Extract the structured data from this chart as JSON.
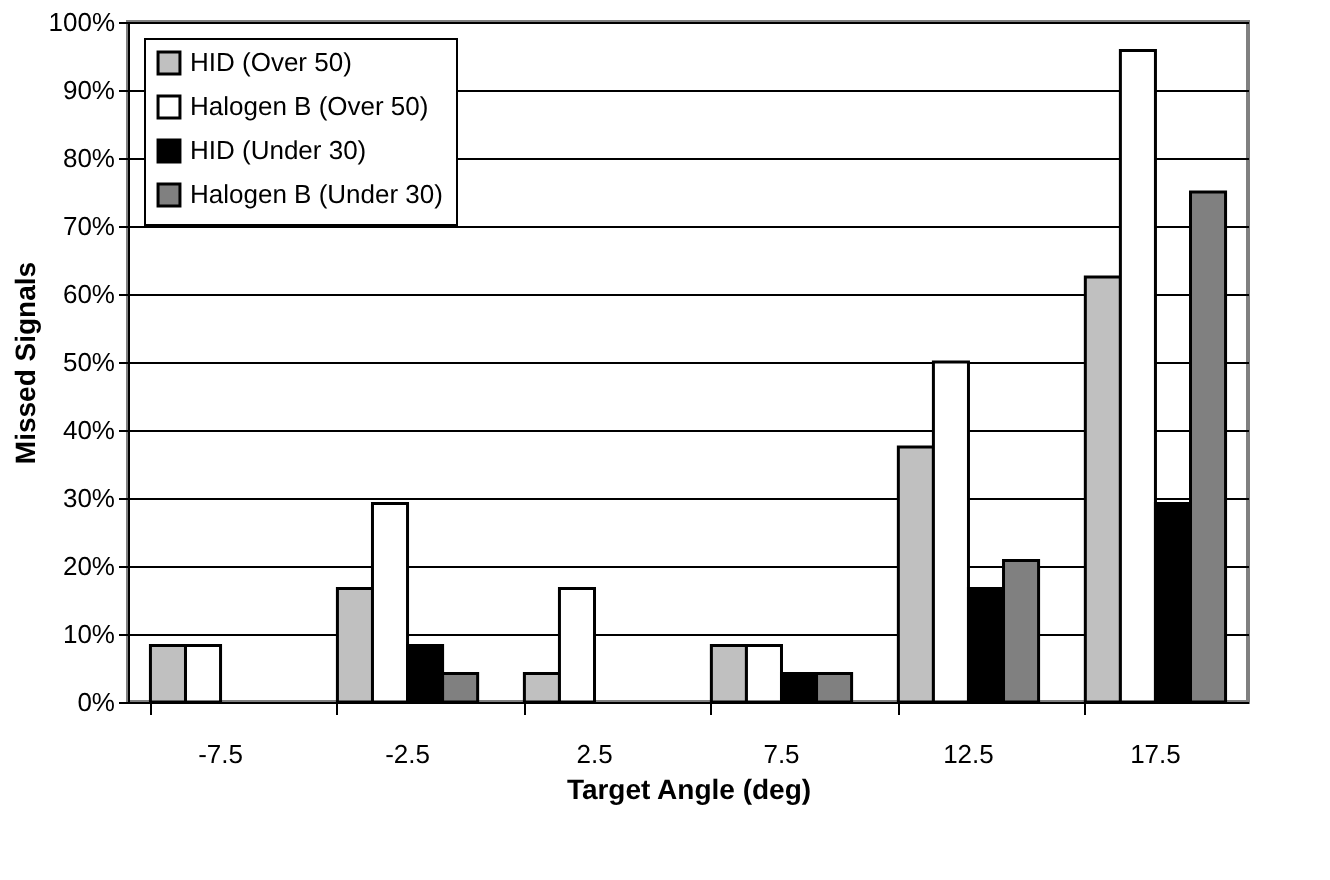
{
  "chart_data": {
    "type": "bar",
    "xlabel": "Target Angle (deg)",
    "ylabel": "Missed Signals",
    "categories": [
      "-7.5",
      "-2.5",
      "2.5",
      "7.5",
      "12.5",
      "17.5"
    ],
    "series": [
      {
        "name": "HID (Over 50)",
        "color": "#c0c0c0",
        "values": [
          8.3,
          16.7,
          4.2,
          8.3,
          37.5,
          62.5
        ]
      },
      {
        "name": "Halogen B (Over 50)",
        "color": "#ffffff",
        "values": [
          8.3,
          29.2,
          16.7,
          8.3,
          50,
          95.8
        ]
      },
      {
        "name": "HID (Under 30)",
        "color": "#000000",
        "values": [
          null,
          8.3,
          null,
          4.2,
          16.7,
          29.2
        ]
      },
      {
        "name": "Halogen B (Under 30)",
        "color": "#808080",
        "values": [
          null,
          4.2,
          null,
          4.2,
          20.8,
          75
        ]
      }
    ],
    "ylim": [
      0,
      100
    ],
    "yticks": [
      {
        "value": 0,
        "label": "0%"
      },
      {
        "value": 10,
        "label": "10%"
      },
      {
        "value": 20,
        "label": "20%"
      },
      {
        "value": 30,
        "label": "30%"
      },
      {
        "value": 40,
        "label": "40%"
      },
      {
        "value": 50,
        "label": "50%"
      },
      {
        "value": 60,
        "label": "60%"
      },
      {
        "value": 70,
        "label": "70%"
      },
      {
        "value": 80,
        "label": "80%"
      },
      {
        "value": 90,
        "label": "90%"
      },
      {
        "value": 100,
        "label": "100%"
      }
    ],
    "grid": "y",
    "legend": "top left"
  }
}
